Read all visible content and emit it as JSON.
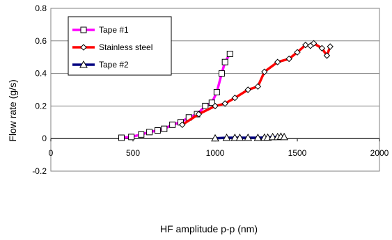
{
  "chart_data": {
    "type": "line",
    "title": "",
    "xlabel": "HF amplitude p-p (nm)",
    "ylabel": "Flow rate (g/s)",
    "xlim": [
      0,
      2000
    ],
    "ylim": [
      -0.2,
      0.8
    ],
    "xticks": [
      0,
      500,
      1000,
      1500,
      2000
    ],
    "xtick_labels": [
      "0",
      "500",
      "1000",
      "1500",
      "2000"
    ],
    "yticks": [
      -0.2,
      0,
      0.2,
      0.4,
      0.6,
      0.8
    ],
    "ytick_labels": [
      "-0.2",
      "0",
      "0.2",
      "0.4",
      "0.6",
      "0.8"
    ],
    "grid": "horizontal",
    "legend": "top-left",
    "series": [
      {
        "name": "Tape #1",
        "color": "#ff00ff",
        "marker": "square",
        "x": [
          430,
          490,
          550,
          600,
          650,
          690,
          740,
          790,
          840,
          890,
          940,
          980,
          1010,
          1040,
          1060,
          1090
        ],
        "y": [
          0.005,
          0.01,
          0.025,
          0.04,
          0.05,
          0.06,
          0.085,
          0.1,
          0.13,
          0.15,
          0.2,
          0.22,
          0.285,
          0.4,
          0.47,
          0.52
        ]
      },
      {
        "name": "Stainless steel",
        "color": "#ff0000",
        "marker": "diamond",
        "x": [
          800,
          900,
          1000,
          1060,
          1120,
          1200,
          1260,
          1300,
          1380,
          1450,
          1500,
          1550,
          1580,
          1600,
          1650,
          1680,
          1700
        ],
        "y": [
          0.085,
          0.15,
          0.2,
          0.215,
          0.25,
          0.3,
          0.32,
          0.41,
          0.47,
          0.49,
          0.53,
          0.575,
          0.57,
          0.585,
          0.555,
          0.51,
          0.565
        ]
      },
      {
        "name": "Tape #2",
        "color": "#000080",
        "marker": "triangle",
        "x": [
          1000,
          1070,
          1120,
          1150,
          1200,
          1260,
          1300,
          1320,
          1350,
          1380,
          1400,
          1420
        ],
        "y": [
          0.002,
          0.005,
          0.005,
          0.005,
          0.005,
          0.005,
          0.006,
          0.006,
          0.01,
          0.01,
          0.012,
          0.01
        ]
      }
    ]
  }
}
